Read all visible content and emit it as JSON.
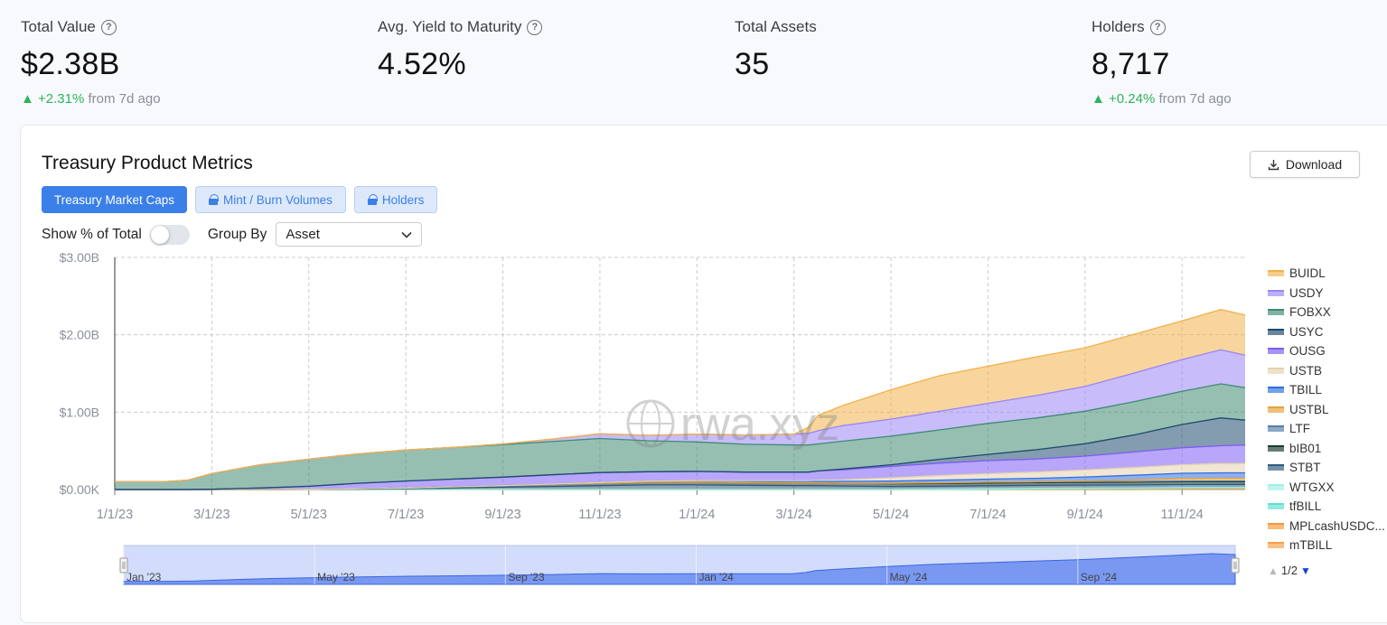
{
  "stats": [
    {
      "label": "Total Value",
      "value": "$2.38B",
      "change": "+2.31%",
      "change_suffix": "from 7d ago",
      "has_help": true
    },
    {
      "label": "Avg. Yield to Maturity",
      "value": "4.52%",
      "change": "",
      "change_suffix": "",
      "has_help": true
    },
    {
      "label": "Total Assets",
      "value": "35",
      "change": "",
      "change_suffix": "",
      "has_help": false
    },
    {
      "label": "Holders",
      "value": "8,717",
      "change": "+0.24%",
      "change_suffix": "from 7d ago",
      "has_help": true
    }
  ],
  "card": {
    "title": "Treasury Product Metrics",
    "download_label": "Download",
    "tabs": [
      {
        "label": "Treasury Market Caps",
        "active": true
      },
      {
        "label": "Mint / Burn Volumes",
        "active": false
      },
      {
        "label": "Holders",
        "active": false
      }
    ],
    "show_pct_label": "Show % of Total",
    "show_pct_on": false,
    "group_by_label": "Group By",
    "group_by_value": "Asset",
    "watermark": "rwa.xyz",
    "pager": "1/2"
  },
  "chart_data": {
    "type": "area",
    "stacked": true,
    "ylim": [
      0,
      3.0
    ],
    "y_unit": "B",
    "y_ticks": [
      "$0.00K",
      "$1.00B",
      "$2.00B",
      "$3.00B"
    ],
    "x_ticks": [
      "1/1/23",
      "3/1/23",
      "5/1/23",
      "7/1/23",
      "9/1/23",
      "11/1/23",
      "1/1/24",
      "3/1/24",
      "5/1/24",
      "7/1/24",
      "9/1/24",
      "11/1/24"
    ],
    "x_tick_months": [
      0,
      2,
      4,
      6,
      8,
      10,
      12,
      14,
      16,
      18,
      20,
      22
    ],
    "x_range_months": [
      0,
      23.3
    ],
    "grid": true,
    "legend_position": "right",
    "x_months": [
      0,
      1,
      1.5,
      2,
      3,
      4,
      5,
      6,
      7,
      8,
      9,
      10,
      11,
      12,
      13,
      14,
      14.3,
      14.5,
      15,
      16,
      17,
      18,
      19,
      20,
      21,
      22,
      22.8,
      23.3
    ],
    "series": [
      {
        "name": "mTBILL",
        "color": "#f7a04a",
        "values": [
          0,
          0,
          0,
          0,
          0,
          0,
          0,
          0,
          0,
          0,
          0,
          0,
          0,
          0,
          0,
          0,
          0,
          0,
          0,
          0,
          0,
          0,
          0,
          0,
          0,
          0.005,
          0.006,
          0.006
        ]
      },
      {
        "name": "MPLcashUSDC...",
        "color": "#f39a3a",
        "values": [
          0,
          0,
          0,
          0,
          0,
          0,
          0,
          0,
          0,
          0,
          0,
          0,
          0,
          0,
          0,
          0,
          0,
          0,
          0,
          0,
          0,
          0,
          0.005,
          0.006,
          0.007,
          0.008,
          0.008,
          0.008
        ]
      },
      {
        "name": "tfBILL",
        "color": "#5fe0d0",
        "values": [
          0,
          0,
          0,
          0,
          0,
          0,
          0,
          0,
          0,
          0,
          0,
          0,
          0,
          0,
          0,
          0,
          0,
          0,
          0,
          0,
          0,
          0.004,
          0.004,
          0.005,
          0.005,
          0.005,
          0.005,
          0.005
        ]
      },
      {
        "name": "WTGXX",
        "color": "#9ff0e6",
        "values": [
          0,
          0,
          0,
          0,
          0,
          0,
          0,
          0,
          0,
          0,
          0,
          0,
          0,
          0,
          0,
          0,
          0,
          0,
          0,
          0,
          0.003,
          0.005,
          0.006,
          0.006,
          0.007,
          0.007,
          0.007,
          0.007
        ]
      },
      {
        "name": "STBT",
        "color": "#2e5a7d",
        "values": [
          0,
          0,
          0,
          0,
          0,
          0.002,
          0.005,
          0.01,
          0.02,
          0.03,
          0.04,
          0.05,
          0.06,
          0.06,
          0.055,
          0.05,
          0.05,
          0.05,
          0.045,
          0.04,
          0.04,
          0.04,
          0.04,
          0.04,
          0.04,
          0.04,
          0.04,
          0.04
        ]
      },
      {
        "name": "bIB01",
        "color": "#1e3b2e",
        "values": [
          0,
          0,
          0,
          0,
          0,
          0,
          0.005,
          0.01,
          0.015,
          0.02,
          0.025,
          0.03,
          0.035,
          0.035,
          0.035,
          0.035,
          0.035,
          0.035,
          0.035,
          0.035,
          0.035,
          0.035,
          0.035,
          0.035,
          0.035,
          0.035,
          0.035,
          0.035
        ]
      },
      {
        "name": "LTF",
        "color": "#4f7fa8",
        "values": [
          0,
          0,
          0,
          0,
          0,
          0,
          0,
          0,
          0,
          0,
          0,
          0,
          0,
          0,
          0,
          0,
          0,
          0,
          0,
          0.005,
          0.008,
          0.01,
          0.01,
          0.01,
          0.01,
          0.01,
          0.01,
          0.01
        ]
      },
      {
        "name": "USTBL",
        "color": "#e8a13a",
        "values": [
          0,
          0,
          0,
          0,
          0,
          0,
          0,
          0,
          0,
          0,
          0,
          0,
          0,
          0,
          0,
          0,
          0,
          0,
          0,
          0,
          0,
          0,
          0,
          0.01,
          0.02,
          0.03,
          0.035,
          0.035
        ]
      },
      {
        "name": "TBILL",
        "color": "#2f6fe0",
        "values": [
          0,
          0,
          0,
          0,
          0,
          0,
          0,
          0,
          0,
          0,
          0.005,
          0.01,
          0.015,
          0.02,
          0.02,
          0.02,
          0.02,
          0.02,
          0.025,
          0.03,
          0.035,
          0.04,
          0.045,
          0.05,
          0.06,
          0.07,
          0.07,
          0.07
        ]
      },
      {
        "name": "USTB",
        "color": "#e5d2b0",
        "values": [
          0,
          0,
          0,
          0,
          0,
          0,
          0,
          0,
          0,
          0,
          0,
          0,
          0,
          0,
          0.005,
          0.01,
          0.01,
          0.015,
          0.02,
          0.04,
          0.06,
          0.07,
          0.08,
          0.09,
          0.1,
          0.11,
          0.12,
          0.12
        ]
      },
      {
        "name": "OUSG",
        "color": "#7c5cf5",
        "values": [
          0,
          0,
          0,
          0.005,
          0.02,
          0.04,
          0.07,
          0.09,
          0.1,
          0.11,
          0.12,
          0.13,
          0.12,
          0.12,
          0.11,
          0.11,
          0.11,
          0.12,
          0.13,
          0.15,
          0.16,
          0.17,
          0.17,
          0.18,
          0.2,
          0.22,
          0.23,
          0.24
        ]
      },
      {
        "name": "USYC",
        "color": "#1e4a6d",
        "values": [
          0,
          0,
          0,
          0,
          0,
          0,
          0,
          0,
          0,
          0,
          0,
          0,
          0,
          0,
          0,
          0,
          0,
          0,
          0.01,
          0.02,
          0.05,
          0.08,
          0.12,
          0.16,
          0.22,
          0.3,
          0.36,
          0.32
        ]
      },
      {
        "name": "FOBXX",
        "color": "#3f8b72",
        "values": [
          0.1,
          0.1,
          0.12,
          0.2,
          0.3,
          0.35,
          0.38,
          0.4,
          0.41,
          0.42,
          0.43,
          0.44,
          0.4,
          0.38,
          0.36,
          0.35,
          0.35,
          0.35,
          0.36,
          0.37,
          0.38,
          0.4,
          0.41,
          0.42,
          0.43,
          0.43,
          0.44,
          0.42
        ]
      },
      {
        "name": "USDY",
        "color": "#9a85f7",
        "values": [
          0,
          0,
          0,
          0,
          0,
          0,
          0,
          0,
          0,
          0.01,
          0.03,
          0.06,
          0.07,
          0.1,
          0.12,
          0.14,
          0.15,
          0.17,
          0.2,
          0.22,
          0.24,
          0.26,
          0.29,
          0.32,
          0.37,
          0.41,
          0.44,
          0.42
        ]
      },
      {
        "name": "BUIDL",
        "color": "#f2b24c",
        "values": [
          0,
          0,
          0,
          0,
          0,
          0,
          0,
          0,
          0,
          0,
          0,
          0,
          0,
          0,
          0,
          0,
          0.08,
          0.2,
          0.26,
          0.38,
          0.46,
          0.48,
          0.5,
          0.5,
          0.5,
          0.5,
          0.52,
          0.52
        ]
      }
    ],
    "navigator": {
      "ticks": [
        "Jan '23",
        "May '23",
        "Sep '23",
        "Jan '24",
        "May '24",
        "Sep '24"
      ],
      "tick_months": [
        0,
        4,
        8,
        12,
        16,
        20
      ]
    }
  }
}
